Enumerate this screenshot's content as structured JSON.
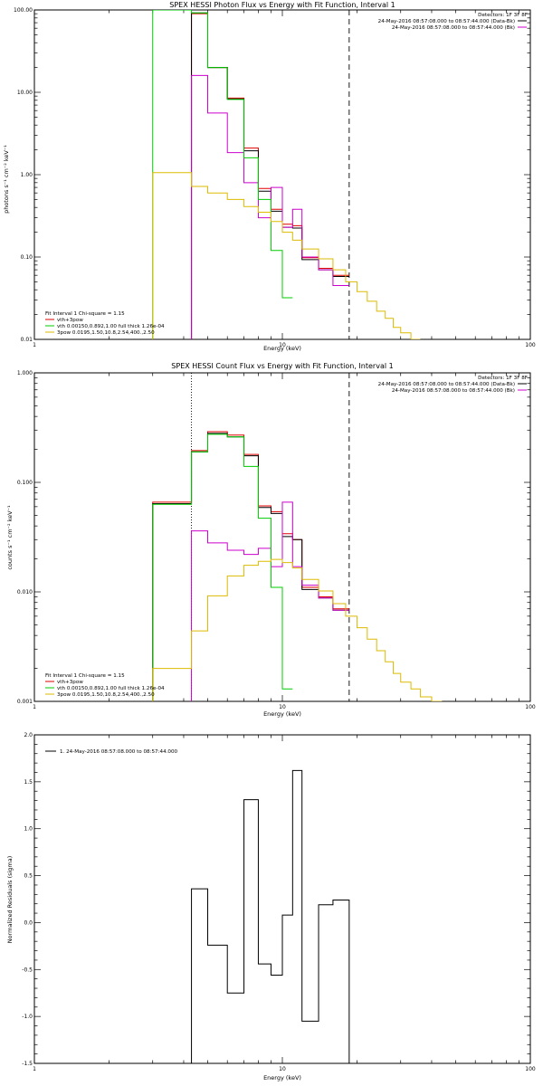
{
  "chart_data": [
    {
      "type": "line",
      "title": "SPEX HESSI Photon Flux vs Energy with Fit Function, Interval 1",
      "xlabel": "Energy (keV)",
      "ylabel": "photons s⁻¹ cm⁻² keV⁻¹",
      "xscale": "log",
      "yscale": "log",
      "xlim": [
        1,
        100
      ],
      "ylim": [
        0.01,
        100
      ],
      "x_ticks": [
        "1",
        "10",
        "100"
      ],
      "y_ticks": [
        "0.01",
        "0.10",
        "1.00",
        "10.00",
        "100.00"
      ],
      "vlines": [
        {
          "x": 4.3,
          "style": "dotted",
          "color": "#000000"
        },
        {
          "x": 18.6,
          "style": "dashed",
          "color": "#000000"
        }
      ],
      "info_lines": [
        "Detectors: 1F 3F 8F",
        "24-May-2016 08:57:08.000 to 08:57:44.000 (Data-Bk)",
        "24-May-2016 08:57:08.000 to 08:57:44.000 (Bk)"
      ],
      "info_colors": [
        "#000000",
        "#cc00cc"
      ],
      "legend_title": "Fit Interval 1   Chi-square = 1.15",
      "legend_position": "bottom-left",
      "legend": [
        {
          "label": "vth+3pow",
          "color": "#dd0000"
        },
        {
          "label": "vth 0.00150,0.892,1.00  full thick 1.26e-04",
          "color": "#00cc00"
        },
        {
          "label": "3pow 0.0195,1.50,10.8,2.54,400.,2.50",
          "color": "#ddbb00"
        }
      ],
      "series": [
        {
          "color": "#dd0000",
          "edges": [
            4.3,
            5,
            6,
            7,
            8,
            9,
            10,
            11,
            12,
            14,
            16,
            18.6
          ],
          "values": [
            90,
            20,
            8.5,
            2.1,
            0.68,
            0.38,
            0.25,
            0.24,
            0.098,
            0.073,
            0.06
          ]
        },
        {
          "color": "#000000",
          "edges": [
            4.3,
            5,
            6,
            7,
            8,
            9,
            10,
            11,
            12,
            14,
            16,
            18.6
          ],
          "values": [
            92,
            20,
            8.3,
            1.95,
            0.63,
            0.36,
            0.23,
            0.225,
            0.093,
            0.07,
            0.058
          ]
        },
        {
          "color": "#cc00cc",
          "edges": [
            4.3,
            5,
            6,
            7,
            8,
            9,
            10,
            11,
            12,
            14,
            16,
            18.6
          ],
          "values": [
            16,
            5.6,
            1.85,
            0.8,
            0.3,
            0.7,
            0.23,
            0.38,
            0.1,
            0.07,
            0.045
          ]
        },
        {
          "color": "#00cc00",
          "edges": [
            3,
            4.3,
            5,
            6,
            7,
            8,
            9,
            10,
            11
          ],
          "values": [
            100,
            92,
            20,
            8.2,
            1.6,
            0.5,
            0.12,
            0.032
          ]
        },
        {
          "color": "#ddbb00",
          "edges": [
            3,
            4.3,
            5,
            6,
            7,
            8,
            9,
            10,
            11,
            12,
            14,
            16,
            18,
            20,
            22,
            24,
            26,
            28,
            30,
            33,
            36
          ],
          "values": [
            1.06,
            0.72,
            0.6,
            0.5,
            0.41,
            0.35,
            0.27,
            0.2,
            0.16,
            0.125,
            0.095,
            0.07,
            0.05,
            0.038,
            0.029,
            0.022,
            0.018,
            0.014,
            0.012,
            0.01
          ]
        }
      ]
    },
    {
      "type": "line",
      "title": "SPEX HESSI Count Flux vs Energy with Fit Function, Interval 1",
      "xlabel": "Energy (keV)",
      "ylabel": "counts s⁻¹ cm⁻² keV⁻¹",
      "xscale": "log",
      "yscale": "log",
      "xlim": [
        1,
        100
      ],
      "ylim": [
        0.001,
        1
      ],
      "x_ticks": [
        "1",
        "10",
        "100"
      ],
      "y_ticks": [
        "0.001",
        "0.010",
        "0.100",
        "1.000"
      ],
      "vlines": [
        {
          "x": 4.3,
          "style": "dotted",
          "color": "#000000"
        },
        {
          "x": 18.6,
          "style": "dashed",
          "color": "#000000"
        }
      ],
      "info_lines": [
        "Detectors: 1F 3F 8F",
        "24-May-2016 08:57:08.000 to 08:57:44.000 (Data-Bk)",
        "24-May-2016 08:57:08.000 to 08:57:44.000 (Bk)"
      ],
      "info_colors": [
        "#000000",
        "#cc00cc"
      ],
      "legend_title": "Fit Interval 1   Chi-square = 1.15",
      "legend_position": "bottom-left",
      "legend": [
        {
          "label": "vth+3pow",
          "color": "#dd0000"
        },
        {
          "label": "vth 0.00150,0.892,1.00  full thick 1.26e-04",
          "color": "#00cc00"
        },
        {
          "label": "3pow 0.0195,1.50,10.8,2.54,400.,2.50",
          "color": "#ddbb00"
        }
      ],
      "series": [
        {
          "color": "#dd0000",
          "edges": [
            3,
            4.3,
            5,
            6,
            7,
            8,
            9,
            10,
            11,
            12,
            14,
            16,
            18.6
          ],
          "values": [
            0.066,
            0.195,
            0.29,
            0.27,
            0.18,
            0.061,
            0.054,
            0.034,
            0.03,
            0.011,
            0.009,
            0.007
          ]
        },
        {
          "color": "#000000",
          "edges": [
            3,
            4.3,
            5,
            6,
            7,
            8,
            9,
            10,
            11,
            12,
            14,
            16,
            18.6
          ],
          "values": [
            0.064,
            0.19,
            0.28,
            0.26,
            0.175,
            0.059,
            0.052,
            0.032,
            0.03,
            0.0105,
            0.0088,
            0.0068
          ]
        },
        {
          "color": "#cc00cc",
          "edges": [
            4.3,
            5,
            6,
            7,
            8,
            9,
            10,
            11,
            12,
            14,
            16,
            18.6
          ],
          "values": [
            0.036,
            0.028,
            0.024,
            0.022,
            0.025,
            0.017,
            0.066,
            0.017,
            0.0115,
            0.0088,
            0.0068
          ]
        },
        {
          "color": "#00cc00",
          "edges": [
            3,
            4.3,
            5,
            6,
            7,
            8,
            9,
            10,
            11
          ],
          "values": [
            0.063,
            0.19,
            0.275,
            0.26,
            0.14,
            0.047,
            0.011,
            0.0013
          ]
        },
        {
          "color": "#ddbb00",
          "edges": [
            3,
            4.3,
            5,
            6,
            7,
            8,
            9,
            10,
            11,
            12,
            14,
            16,
            18,
            20,
            22,
            24,
            26,
            28,
            30,
            33,
            36,
            40,
            44
          ],
          "values": [
            0.002,
            0.0044,
            0.0092,
            0.014,
            0.0175,
            0.019,
            0.0198,
            0.0185,
            0.0165,
            0.013,
            0.0102,
            0.0078,
            0.006,
            0.0047,
            0.0037,
            0.0029,
            0.0023,
            0.0018,
            0.0015,
            0.0013,
            0.0011,
            0.001
          ]
        }
      ]
    },
    {
      "type": "line",
      "title": "",
      "xlabel": "Energy (keV)",
      "ylabel": "Normalized Residuals (sigma)",
      "xscale": "log",
      "yscale": "linear",
      "xlim": [
        1,
        100
      ],
      "ylim": [
        -1.5,
        2.0
      ],
      "x_ticks": [
        "1",
        "10",
        "100"
      ],
      "y_ticks": [
        "-1.5",
        "-1.0",
        "-0.5",
        "0.0",
        "0.5",
        "1.0",
        "1.5",
        "2.0"
      ],
      "y_tick_values": [
        -1.5,
        -1.0,
        -0.5,
        0.0,
        0.5,
        1.0,
        1.5,
        2.0
      ],
      "vlines": [],
      "info_lines": [],
      "legend_title": "",
      "legend_position": "top-left",
      "legend": [
        {
          "label": "1. 24-May-2016 08:57:08.000 to 08:57:44.000",
          "color": "#000000"
        }
      ],
      "series": [
        {
          "color": "#000000",
          "closed": true,
          "edges": [
            4.3,
            5,
            6,
            7,
            8,
            9,
            10,
            11,
            12,
            14,
            16,
            18.6
          ],
          "values": [
            0.36,
            -0.24,
            -0.75,
            1.31,
            -0.44,
            -0.56,
            0.08,
            1.62,
            -1.05,
            0.19,
            0.24
          ]
        }
      ]
    }
  ]
}
